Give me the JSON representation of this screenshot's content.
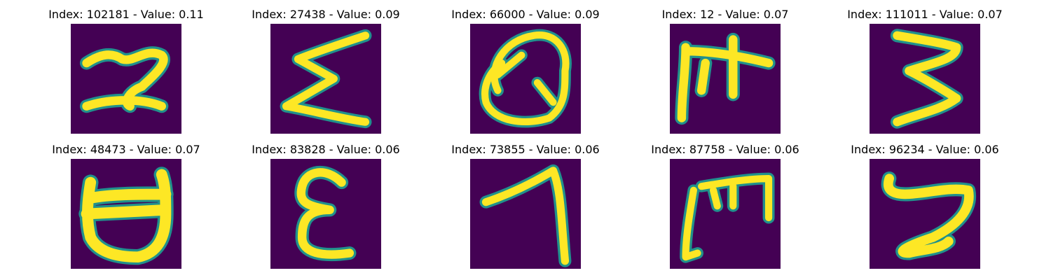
{
  "colors": {
    "background": "#440154",
    "stroke": "#fde725",
    "edge": "#21918c"
  },
  "panels": [
    {
      "title": "Index: 102181 - Value: 0.11",
      "glyph": "digit-two-like handwritten character"
    },
    {
      "title": "Index: 27438 - Value: 0.09",
      "glyph": "sigma-like handwritten character"
    },
    {
      "title": "Index: 66000 - Value: 0.09",
      "glyph": "Q-like handwritten character"
    },
    {
      "title": "Index: 12 - Value: 0.07",
      "glyph": "F-like handwritten character"
    },
    {
      "title": "Index: 111011 - Value: 0.07",
      "glyph": "three-like handwritten character"
    },
    {
      "title": "Index: 48473 - Value: 0.07",
      "glyph": "cup-like handwritten character"
    },
    {
      "title": "Index: 83828 - Value: 0.06",
      "glyph": "epsilon-like handwritten character"
    },
    {
      "title": "Index: 73855 - Value: 0.06",
      "glyph": "seven-like handwritten character"
    },
    {
      "title": "Index: 87758 - Value: 0.06",
      "glyph": "m-like handwritten character"
    },
    {
      "title": "Index: 96234 - Value: 0.06",
      "glyph": "s-like handwritten character"
    }
  ]
}
